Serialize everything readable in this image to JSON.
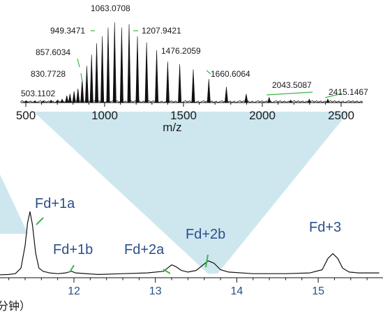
{
  "chart_data": [
    {
      "type": "line",
      "name": "mass-spectrum",
      "xlabel": "m/z",
      "xlim": [
        500,
        2550
      ],
      "xticks": [
        500,
        1000,
        1500,
        2000,
        2500
      ],
      "ylim": [
        0,
        1
      ],
      "colors": {
        "line": "#111111",
        "leader": "#3cb54a"
      },
      "peaks": [
        {
          "x": 503.1102,
          "y": 0.02
        },
        {
          "x": 560,
          "y": 0.02
        },
        {
          "x": 610,
          "y": 0.02
        },
        {
          "x": 660,
          "y": 0.03
        },
        {
          "x": 700,
          "y": 0.03
        },
        {
          "x": 730,
          "y": 0.04
        },
        {
          "x": 760,
          "y": 0.08
        },
        {
          "x": 780,
          "y": 0.1
        },
        {
          "x": 806,
          "y": 0.13
        },
        {
          "x": 830.7728,
          "y": 0.16
        },
        {
          "x": 857.6034,
          "y": 0.27
        },
        {
          "x": 887,
          "y": 0.42
        },
        {
          "x": 917,
          "y": 0.55
        },
        {
          "x": 949.3471,
          "y": 0.68
        },
        {
          "x": 985,
          "y": 0.76
        },
        {
          "x": 1022,
          "y": 0.86
        },
        {
          "x": 1063.0708,
          "y": 0.92
        },
        {
          "x": 1108,
          "y": 0.86
        },
        {
          "x": 1155,
          "y": 0.9
        },
        {
          "x": 1207.9421,
          "y": 0.76
        },
        {
          "x": 1266,
          "y": 0.69
        },
        {
          "x": 1330,
          "y": 0.6
        },
        {
          "x": 1400,
          "y": 0.47
        },
        {
          "x": 1476.2059,
          "y": 0.44
        },
        {
          "x": 1562,
          "y": 0.38
        },
        {
          "x": 1660.6064,
          "y": 0.27
        },
        {
          "x": 1772,
          "y": 0.18
        },
        {
          "x": 1898,
          "y": 0.1
        },
        {
          "x": 2043.5087,
          "y": 0.06
        },
        {
          "x": 2180,
          "y": 0.03
        },
        {
          "x": 2298,
          "y": 0.04
        },
        {
          "x": 2415.1467,
          "y": 0.04
        }
      ],
      "annotations": [
        {
          "label": "503.1102",
          "x": 503.1102
        },
        {
          "label": "830.7728",
          "x": 830.7728
        },
        {
          "label": "857.6034",
          "x": 857.6034
        },
        {
          "label": "949.3471",
          "x": 949.3471
        },
        {
          "label": "1063.0708",
          "x": 1063.0708
        },
        {
          "label": "1207.9421",
          "x": 1207.9421
        },
        {
          "label": "1476.2059",
          "x": 1476.2059
        },
        {
          "label": "1660.6064",
          "x": 1660.6064
        },
        {
          "label": "2043.5087",
          "x": 2043.5087
        },
        {
          "label": "2415.1467",
          "x": 2415.1467
        }
      ]
    },
    {
      "type": "line",
      "name": "chromatogram",
      "xlabel": "分钟）",
      "xlim": [
        10.9,
        15.75
      ],
      "xticks": [
        12,
        13,
        14,
        15
      ],
      "ylim": [
        0,
        1
      ],
      "colors": {
        "line": "#111111",
        "peak_labels": "#2b4f8a",
        "leader": "#3cb54a",
        "wedge": "#c5e3ec"
      },
      "points": [
        [
          10.9,
          0.03
        ],
        [
          11.2,
          0.04
        ],
        [
          11.28,
          0.05
        ],
        [
          11.35,
          0.12
        ],
        [
          11.4,
          0.4
        ],
        [
          11.43,
          0.68
        ],
        [
          11.46,
          0.82
        ],
        [
          11.49,
          0.66
        ],
        [
          11.53,
          0.3
        ],
        [
          11.57,
          0.12
        ],
        [
          11.62,
          0.08
        ],
        [
          11.7,
          0.06
        ],
        [
          11.8,
          0.05
        ],
        [
          11.9,
          0.06
        ],
        [
          11.97,
          0.08
        ],
        [
          12.02,
          0.06
        ],
        [
          12.3,
          0.04
        ],
        [
          12.6,
          0.05
        ],
        [
          12.9,
          0.06
        ],
        [
          13.1,
          0.08
        ],
        [
          13.15,
          0.12
        ],
        [
          13.2,
          0.16
        ],
        [
          13.25,
          0.14
        ],
        [
          13.32,
          0.09
        ],
        [
          13.4,
          0.07
        ],
        [
          13.5,
          0.09
        ],
        [
          13.6,
          0.17
        ],
        [
          13.65,
          0.21
        ],
        [
          13.72,
          0.18
        ],
        [
          13.8,
          0.1
        ],
        [
          13.9,
          0.07
        ],
        [
          14.2,
          0.05
        ],
        [
          14.6,
          0.05
        ],
        [
          14.9,
          0.06
        ],
        [
          15.05,
          0.1
        ],
        [
          15.12,
          0.24
        ],
        [
          15.18,
          0.3
        ],
        [
          15.24,
          0.24
        ],
        [
          15.3,
          0.12
        ],
        [
          15.38,
          0.07
        ],
        [
          15.5,
          0.06
        ],
        [
          15.75,
          0.06
        ]
      ],
      "peak_annotations": [
        {
          "label": "Fd+1a",
          "x": 11.46
        },
        {
          "label": "Fd+1b",
          "x": 11.97
        },
        {
          "label": "Fd+2a",
          "x": 13.2
        },
        {
          "label": "Fd+2b",
          "x": 13.65
        },
        {
          "label": "Fd+3",
          "x": 15.18
        }
      ]
    }
  ]
}
